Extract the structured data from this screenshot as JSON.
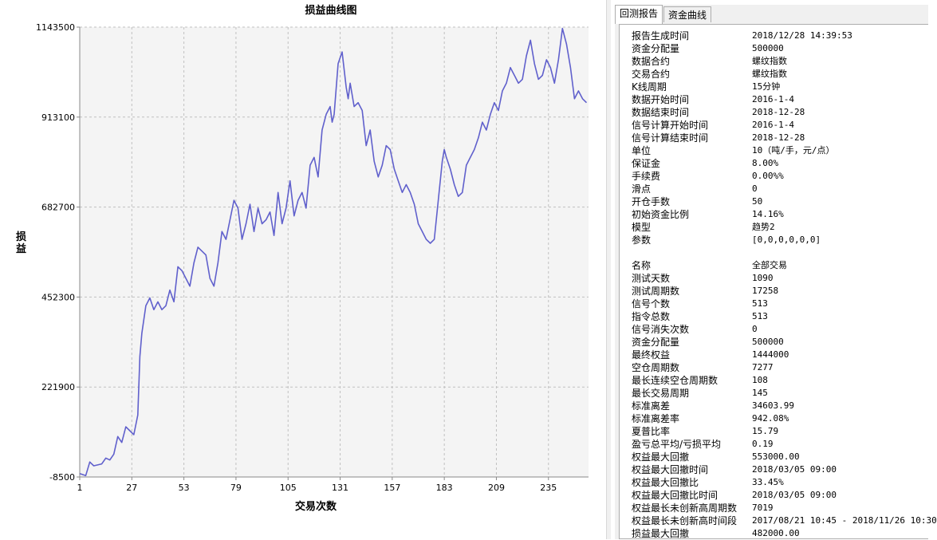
{
  "chart_data": {
    "type": "line",
    "title": "损益曲线图",
    "xlabel": "交易次数",
    "ylabel": "损益",
    "x_ticks": [
      1,
      27,
      53,
      79,
      105,
      131,
      157,
      183,
      209,
      235
    ],
    "y_ticks": [
      -8500,
      221900,
      452300,
      682700,
      913100,
      1143500
    ],
    "xlim": [
      1,
      255
    ],
    "ylim": [
      -8500,
      1143500
    ],
    "grid": true,
    "line_color": "#6060cc",
    "series": [
      {
        "x": [
          1,
          4,
          6,
          8,
          12,
          14,
          16,
          18,
          20,
          22,
          24,
          26,
          28,
          30,
          31,
          32,
          34,
          36,
          38,
          40,
          42,
          44,
          46,
          48,
          50,
          52,
          54,
          56,
          58,
          60,
          62,
          64,
          66,
          68,
          70,
          72,
          74,
          76,
          78,
          80,
          82,
          84,
          86,
          88,
          90,
          92,
          94,
          96,
          98,
          100,
          102,
          104,
          106,
          108,
          110,
          112,
          114,
          116,
          118,
          120,
          122,
          124,
          126,
          127,
          128,
          130,
          132,
          134,
          135,
          136,
          138,
          140,
          142,
          144,
          146,
          148,
          150,
          152,
          154,
          156,
          158,
          160,
          162,
          164,
          166,
          168,
          170,
          172,
          174,
          176,
          178,
          180,
          182,
          183,
          184,
          186,
          188,
          190,
          192,
          194,
          196,
          198,
          200,
          202,
          204,
          206,
          208,
          210,
          212,
          214,
          216,
          218,
          220,
          222,
          224,
          226,
          228,
          230,
          232,
          234,
          236,
          238,
          240,
          242,
          244,
          246,
          248,
          250,
          252,
          254
        ],
        "values": [
          0,
          -5000,
          30000,
          20000,
          25000,
          40000,
          35000,
          50000,
          95000,
          80000,
          120000,
          110000,
          100000,
          150000,
          300000,
          360000,
          430000,
          450000,
          420000,
          440000,
          420000,
          430000,
          470000,
          440000,
          530000,
          520000,
          500000,
          480000,
          540000,
          580000,
          570000,
          560000,
          500000,
          480000,
          540000,
          620000,
          600000,
          650000,
          700000,
          680000,
          600000,
          640000,
          690000,
          620000,
          680000,
          640000,
          650000,
          670000,
          610000,
          720000,
          640000,
          680000,
          750000,
          660000,
          700000,
          720000,
          680000,
          790000,
          810000,
          760000,
          880000,
          920000,
          940000,
          900000,
          920000,
          1050000,
          1080000,
          990000,
          960000,
          1000000,
          940000,
          950000,
          930000,
          840000,
          880000,
          800000,
          760000,
          790000,
          840000,
          830000,
          780000,
          750000,
          720000,
          740000,
          720000,
          690000,
          640000,
          620000,
          600000,
          590000,
          600000,
          700000,
          800000,
          830000,
          810000,
          780000,
          740000,
          710000,
          720000,
          790000,
          810000,
          830000,
          860000,
          900000,
          880000,
          920000,
          950000,
          930000,
          980000,
          1000000,
          1040000,
          1020000,
          1000000,
          1010000,
          1070000,
          1110000,
          1050000,
          1010000,
          1020000,
          1060000,
          1040000,
          1000000,
          1060000,
          1140000,
          1100000,
          1040000,
          960000,
          980000,
          960000,
          950000
        ]
      }
    ]
  },
  "report": {
    "tabs": [
      {
        "label": "回测报告"
      },
      {
        "label": "资金曲线"
      }
    ],
    "rows": [
      {
        "key": "报告生成时间",
        "value": "2018/12/28 14:39:53"
      },
      {
        "key": "资金分配量",
        "value": "500000"
      },
      {
        "key": "数据合约",
        "value": "螺纹指数"
      },
      {
        "key": "交易合约",
        "value": "螺纹指数"
      },
      {
        "key": "K线周期",
        "value": "15分钟"
      },
      {
        "key": "数据开始时间",
        "value": "2016-1-4"
      },
      {
        "key": "数据结束时间",
        "value": "2018-12-28"
      },
      {
        "key": "信号计算开始时间",
        "value": "2016-1-4"
      },
      {
        "key": "信号计算结束时间",
        "value": "2018-12-28"
      },
      {
        "key": "单位",
        "value": "10（吨/手，元/点）"
      },
      {
        "key": "保证金",
        "value": "8.00%"
      },
      {
        "key": "手续费",
        "value": "0.00%%"
      },
      {
        "key": "滑点",
        "value": "0"
      },
      {
        "key": "开仓手数",
        "value": "50"
      },
      {
        "key": "初始资金比例",
        "value": "14.16%"
      },
      {
        "key": "模型",
        "value": "趋势2"
      },
      {
        "key": "参数",
        "value": "[0,0,0,0,0,0]"
      },
      {
        "key": "",
        "value": ""
      },
      {
        "key": "名称",
        "value": "全部交易"
      },
      {
        "key": "测试天数",
        "value": "1090"
      },
      {
        "key": "测试周期数",
        "value": "17258"
      },
      {
        "key": "信号个数",
        "value": "513"
      },
      {
        "key": "指令总数",
        "value": "513"
      },
      {
        "key": "信号消失次数",
        "value": "0"
      },
      {
        "key": "资金分配量",
        "value": "500000"
      },
      {
        "key": "最终权益",
        "value": "1444000"
      },
      {
        "key": "空仓周期数",
        "value": "7277"
      },
      {
        "key": "最长连续空仓周期数",
        "value": "108"
      },
      {
        "key": "最长交易周期",
        "value": "145"
      },
      {
        "key": "标准离差",
        "value": "34603.99"
      },
      {
        "key": "标准离差率",
        "value": "942.08%"
      },
      {
        "key": "夏普比率",
        "value": "15.79"
      },
      {
        "key": "盈亏总平均/亏损平均",
        "value": "0.19"
      },
      {
        "key": "权益最大回撤",
        "value": "553000.00"
      },
      {
        "key": "权益最大回撤时间",
        "value": "2018/03/05 09:00"
      },
      {
        "key": "权益最大回撤比",
        "value": "33.45%"
      },
      {
        "key": "权益最大回撤比时间",
        "value": "2018/03/05 09:00"
      },
      {
        "key": "权益最长未创新高周期数",
        "value": "7019"
      },
      {
        "key": "权益最长未创新高时间段",
        "value": "2017/08/21 10:45 - 2018/11/26 10:30"
      },
      {
        "key": "损益最大回撤",
        "value": "482000.00"
      }
    ]
  }
}
